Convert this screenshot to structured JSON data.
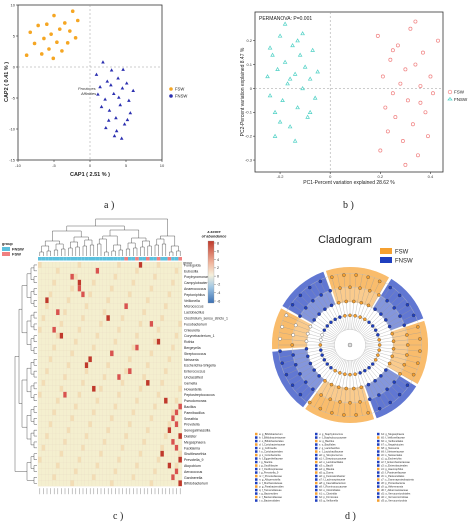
{
  "panels": {
    "a": {
      "label": "a )",
      "chart_data": {
        "type": "scatter",
        "xlabel": "CAP1 ( 2.51 % )",
        "ylabel": "CAP2 ( 0.41 % )",
        "xlim": [
          -10,
          10
        ],
        "ylim": [
          -15,
          10
        ],
        "xticks": [
          "-10",
          "-5",
          "0",
          "5",
          "10"
        ],
        "yticks": [
          "10",
          "5",
          "0",
          "-5",
          "-10",
          "-15"
        ],
        "annotation": "Provinces\nAffinities",
        "legend": [
          "FSW",
          "FNSW"
        ],
        "legend_position": "right",
        "series": [
          {
            "name": "FSW",
            "color": "#f5a623",
            "points": [
              [
                -8.3,
                5.6
              ],
              [
                -7.7,
                3.8
              ],
              [
                -7.2,
                6.7
              ],
              [
                -6.7,
                2.1
              ],
              [
                -6.4,
                4.6
              ],
              [
                -6.0,
                6.9
              ],
              [
                -5.7,
                2.9
              ],
              [
                -5.4,
                5.3
              ],
              [
                -5.0,
                8.3
              ],
              [
                -4.6,
                4.0
              ],
              [
                -4.2,
                6.1
              ],
              [
                -3.9,
                2.6
              ],
              [
                -3.5,
                7.1
              ],
              [
                -3.1,
                3.9
              ],
              [
                -2.8,
                5.8
              ],
              [
                -2.4,
                9.0
              ],
              [
                -2.0,
                4.7
              ],
              [
                -1.7,
                7.5
              ],
              [
                -8.8,
                1.9
              ],
              [
                -5.1,
                1.4
              ]
            ]
          },
          {
            "name": "FNSW",
            "color": "#2b2fb0",
            "points": [
              [
                0.9,
                -1.2
              ],
              [
                1.4,
                -3.2
              ],
              [
                1.8,
                0.8
              ],
              [
                2.1,
                -5.2
              ],
              [
                2.4,
                -2.3
              ],
              [
                2.7,
                -7.0
              ],
              [
                3.0,
                -0.5
              ],
              [
                3.3,
                -4.3
              ],
              [
                3.6,
                -8.2
              ],
              [
                3.9,
                -1.8
              ],
              [
                4.2,
                -6.1
              ],
              [
                4.5,
                -3.4
              ],
              [
                4.8,
                -9.2
              ],
              [
                5.1,
                -2.6
              ],
              [
                5.4,
                -5.4
              ],
              [
                5.6,
                -7.4
              ],
              [
                2.2,
                -9.8
              ],
              [
                3.4,
                -11.1
              ],
              [
                1.6,
                -6.4
              ],
              [
                4.6,
                -0.4
              ],
              [
                2.9,
                -2.9
              ],
              [
                3.7,
                -10.3
              ],
              [
                5.2,
                -8.5
              ],
              [
                1.1,
                -4.4
              ],
              [
                6.0,
                -3.8
              ],
              [
                4.0,
                -4.9
              ],
              [
                2.6,
                -8.6
              ],
              [
                4.4,
                -11.5
              ]
            ]
          }
        ]
      }
    },
    "b": {
      "label": "b )",
      "chart_data": {
        "type": "scatter",
        "title": "PERMANOVA: P=0.001",
        "xlabel": "PC1-Percent variation explained 28.62 %",
        "ylabel": "PC2-Percent variation explained 8.47 %",
        "xlim": [
          -0.3,
          0.45
        ],
        "ylim": [
          -0.35,
          0.32
        ],
        "xticks": [
          "-0.2",
          "0",
          "0.2",
          "0.4"
        ],
        "yticks": [
          "0.2",
          "0.1",
          "0",
          "-0.1",
          "-0.2",
          "-0.3"
        ],
        "legend": [
          "FSW",
          "FNSW"
        ],
        "legend_position": "right",
        "series": [
          {
            "name": "FSW",
            "color": "#f08080",
            "points": [
              [
                0.19,
                0.22
              ],
              [
                0.21,
                0.05
              ],
              [
                0.22,
                -0.08
              ],
              [
                0.23,
                -0.18
              ],
              [
                0.24,
                0.12
              ],
              [
                0.25,
                -0.02
              ],
              [
                0.26,
                -0.12
              ],
              [
                0.27,
                0.18
              ],
              [
                0.28,
                0.02
              ],
              [
                0.29,
                -0.22
              ],
              [
                0.3,
                0.08
              ],
              [
                0.31,
                -0.05
              ],
              [
                0.32,
                0.25
              ],
              [
                0.33,
                -0.15
              ],
              [
                0.34,
                0.1
              ],
              [
                0.35,
                -0.28
              ],
              [
                0.36,
                0.01
              ],
              [
                0.37,
                0.15
              ],
              [
                0.38,
                -0.1
              ],
              [
                0.39,
                -0.2
              ],
              [
                0.4,
                0.05
              ],
              [
                0.41,
                -0.02
              ],
              [
                0.43,
                0.2
              ],
              [
                0.3,
                -0.32
              ],
              [
                0.34,
                0.28
              ],
              [
                0.36,
                -0.06
              ],
              [
                0.25,
                0.16
              ],
              [
                0.2,
                -0.26
              ]
            ]
          },
          {
            "name": "FNSW",
            "color": "#4fd1c5",
            "points": [
              [
                -0.25,
                0.05
              ],
              [
                -0.24,
                -0.03
              ],
              [
                -0.23,
                0.14
              ],
              [
                -0.22,
                -0.1
              ],
              [
                -0.21,
                0.08
              ],
              [
                -0.2,
                0.22
              ],
              [
                -0.19,
                -0.05
              ],
              [
                -0.18,
                0.11
              ],
              [
                -0.17,
                0.02
              ],
              [
                -0.16,
                -0.16
              ],
              [
                -0.15,
                0.18
              ],
              [
                -0.14,
                0.06
              ],
              [
                -0.13,
                -0.08
              ],
              [
                -0.12,
                0.14
              ],
              [
                -0.11,
                0.0
              ],
              [
                -0.1,
                0.09
              ],
              [
                -0.09,
                -0.12
              ],
              [
                -0.08,
                0.04
              ],
              [
                -0.07,
                0.16
              ],
              [
                -0.06,
                -0.04
              ],
              [
                -0.05,
                0.07
              ],
              [
                -0.18,
                0.27
              ],
              [
                -0.22,
                -0.2
              ],
              [
                -0.14,
                -0.22
              ],
              [
                -0.11,
                0.23
              ],
              [
                -0.16,
                0.04
              ],
              [
                -0.2,
                -0.14
              ],
              [
                -0.08,
                -0.1
              ],
              [
                -0.13,
                0.2
              ],
              [
                -0.24,
                0.17
              ]
            ]
          }
        ]
      }
    },
    "c": {
      "label": "c )",
      "chart_data": {
        "type": "heatmap",
        "legend_title": "z-score of abundance",
        "legend_ticks": [
          "8",
          "6",
          "4",
          "2",
          "0",
          "-2",
          "-4",
          "-6"
        ],
        "group_legend_title": "group",
        "group_legend": [
          "FNSW",
          "FSW"
        ],
        "group_label": "group",
        "rows": [
          "Fonegolda",
          "Eubosilla",
          "Porphyromonas",
          "Campylobacter",
          "Anaerococcus",
          "Peptoniphilus",
          "Veillonella",
          "Micrococcus",
          "Lactobacillus",
          "Clostridium_sensu_stricto_1",
          "Fusobacterium",
          "Cnleurella",
          "Corynebacterium_1",
          "Rothia",
          "Bergeyella",
          "Streptococcus",
          "Neisseria",
          "Escherichia-Shigella",
          "Enterococcus",
          "Unclassified",
          "Gemella",
          "Howardella",
          "Peptostreptococcus",
          "Pseudomonas",
          "Bacillus",
          "Paenibacillus",
          "Sneathia",
          "Prevotella",
          "Senegalimassilia",
          "Dialister",
          "Megasphaera",
          "Facklamia",
          "Shuttleworthia",
          "Prevotella_9",
          "Atopobium",
          "Aerococcus",
          "Gardnerella",
          "Bifidobacterium"
        ]
      }
    },
    "d": {
      "label": "d )",
      "title": "Cladogram",
      "legend": [
        {
          "name": "FSW",
          "color": "#f5a030"
        },
        {
          "name": "FNSW",
          "color": "#1f3fbf"
        }
      ],
      "key_columns": [
        [
          "a: g_Bifidobacterium",
          "b: f_Bifidobacteriaceae",
          "c: o_Bifidobacteriales",
          "d: f_Coriobacteriaceae",
          "e: g_Collinsella",
          "f: o_Coriobacteriales",
          "g: c_Coriobacteriia",
          "h: f_Eggerthellaceae",
          "i: g_Slackia",
          "j: g_Oscillibacter",
          "k: f_Oscillospiraceae",
          "l: g_Prevotella_9",
          "m: f_Prevotellaceae",
          "n: g_Alloprevotella",
          "o: f_Muribaculaceae",
          "p: g_Parabacteroides",
          "q: f_Tannerellaceae",
          "r: g_Bacteroides",
          "s: f_Bacteroidaceae",
          "t: o_Bacteroidales"
        ],
        [
          "u: g_Staphylococcus",
          "v: f_Staphylococcaceae",
          "w: g_Bacillus",
          "x: o_Bacillales",
          "y: g_Lactobacillus",
          "z: f_Lactobacillaceae",
          "a0: g_Streptococcus",
          "a1: f_Streptococcaceae",
          "a2: o_Lactobacillales",
          "a3: c_Bacilli",
          "a4: g_Blautia",
          "a5: g_Dorea",
          "a6: g_Fusicatenibacter",
          "a7: f_Lachnospiraceae",
          "a8: g_Faecalibacterium",
          "a9: f_Ruminococcaceae",
          "b0: o_Clostridiales",
          "b1: c_Clostridia",
          "b2: p_Firmicutes",
          "b3: g_Veillonella"
        ],
        [
          "b4: g_Megasphaera",
          "b5: f_Veillonellaceae",
          "b6: o_Veillonellales",
          "b7: c_Negativicutes",
          "b8: g_Neisseria",
          "b9: f_Neisseriaceae",
          "c0: o_Neisseriales",
          "c1: g_Escherichia",
          "c2: f_Enterobacteriaceae",
          "c3: o_Enterobacterales",
          "c4: g_Haemophilus",
          "c5: f_Pasteurellaceae",
          "c6: o_Pasteurellales",
          "c7: c_Gammaproteobacteria",
          "c8: p_Proteobacteria",
          "c9: g_Akkermansia",
          "d0: f_Akkermansiaceae",
          "d1: o_Verrucomicrobiales",
          "d2: c_Verrucomicrobiae",
          "d3: p_Verrucomicrobia"
        ]
      ]
    }
  }
}
